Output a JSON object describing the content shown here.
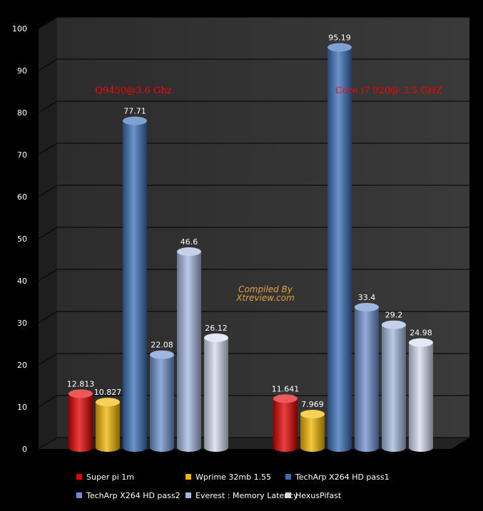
{
  "chart_data": {
    "type": "bar",
    "categories": [
      "Q9450@3.6 Ghz",
      "Core i7 920@ 3.5 GHZ"
    ],
    "series": [
      {
        "name": "Super pi 1m",
        "values": [
          12.813,
          11.641
        ],
        "color": "#e00000"
      },
      {
        "name": "Wprime 32mb 1.55",
        "values": [
          10.827,
          7.969
        ],
        "color": "#f2b600"
      },
      {
        "name": "TechArp X264 HD pass1",
        "values": [
          77.71,
          95.19
        ],
        "color": "#3a6fb8"
      },
      {
        "name": "TechArp X264 HD pass2",
        "values": [
          22.08,
          33.4
        ],
        "color": "#6c90cf"
      },
      {
        "name": "Everest : Memory Latency",
        "values": [
          46.6,
          29.2
        ],
        "color": "#a3b8e0"
      },
      {
        "name": "HexusPifast",
        "values": [
          26.12,
          24.98
        ],
        "color": "#d3dcef"
      }
    ],
    "ylim": [
      0,
      100
    ],
    "yticks": [
      0,
      10,
      20,
      30,
      40,
      50,
      60,
      70,
      80,
      90,
      100
    ],
    "grid": true,
    "legend": "bottom",
    "annotations": [
      "Compiled By",
      "Xtreview.com"
    ]
  }
}
